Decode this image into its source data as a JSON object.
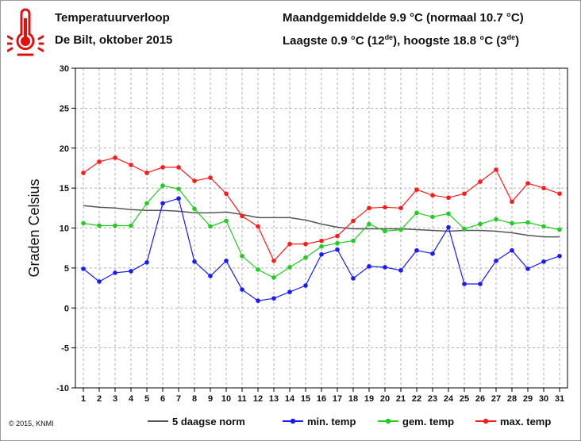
{
  "header": {
    "title": "Temperatuurverloop",
    "subtitle": "De Bilt, oktober 2015",
    "summary_line1": "Maandgemiddelde 9.9 °C (normaal 10.7 °C)",
    "summary_line2_pre": "Laagste 0.9 °C (12",
    "summary_line2_sup1": "de",
    "summary_line2_mid": "), hoogste 18.8 °C (3",
    "summary_line2_sup2": "de",
    "summary_line2_post": ")"
  },
  "icon": {
    "name": "thermometer-icon",
    "color": "#e01010"
  },
  "copyright": "© 2015, KNMI",
  "chart_data": {
    "type": "line",
    "ylabel": "Graden Celsius",
    "xlabel": "",
    "ylim": [
      -10,
      30
    ],
    "yticks": [
      -10,
      -5,
      0,
      5,
      10,
      15,
      20,
      25,
      30
    ],
    "grid": "dashed",
    "legend_position": "bottom",
    "x": [
      1,
      2,
      3,
      4,
      5,
      6,
      7,
      8,
      9,
      10,
      11,
      12,
      13,
      14,
      15,
      16,
      17,
      18,
      19,
      20,
      21,
      22,
      23,
      24,
      25,
      26,
      27,
      28,
      29,
      30,
      31
    ],
    "series": [
      {
        "name": "5 daagse norm",
        "color": "#555555",
        "markers": false,
        "values": [
          12.8,
          12.6,
          12.5,
          12.3,
          12.2,
          12.2,
          12.1,
          11.9,
          11.9,
          12.0,
          11.7,
          11.3,
          11.3,
          11.3,
          11.0,
          10.5,
          10.1,
          9.9,
          9.9,
          9.9,
          9.9,
          9.8,
          9.7,
          9.6,
          9.7,
          9.7,
          9.6,
          9.4,
          9.1,
          8.9,
          8.9
        ]
      },
      {
        "name": "min. temp",
        "color": "#1a1aff",
        "markers": true,
        "values": [
          4.9,
          3.3,
          4.4,
          4.6,
          5.7,
          13.1,
          13.7,
          5.8,
          4.0,
          5.9,
          2.3,
          0.9,
          1.2,
          2.0,
          2.8,
          6.7,
          7.3,
          3.7,
          5.2,
          5.1,
          4.7,
          7.2,
          6.8,
          10.1,
          3.0,
          3.0,
          5.9,
          7.2,
          4.9,
          5.8,
          6.5
        ]
      },
      {
        "name": "gem. temp",
        "color": "#22cc22",
        "markers": true,
        "values": [
          10.6,
          10.3,
          10.3,
          10.3,
          13.1,
          15.3,
          14.9,
          12.4,
          10.2,
          10.9,
          6.5,
          4.8,
          3.8,
          5.1,
          6.3,
          7.7,
          8.1,
          8.4,
          10.5,
          9.6,
          9.8,
          11.9,
          11.4,
          11.8,
          9.9,
          10.5,
          11.1,
          10.6,
          10.7,
          10.2,
          9.8
        ]
      },
      {
        "name": "max. temp",
        "color": "#ff1a1a",
        "markers": true,
        "values": [
          16.9,
          18.3,
          18.8,
          17.9,
          16.9,
          17.6,
          17.6,
          15.9,
          16.3,
          14.3,
          11.5,
          10.2,
          5.9,
          8.0,
          8.0,
          8.4,
          9.0,
          10.9,
          12.5,
          12.6,
          12.5,
          14.8,
          14.1,
          13.8,
          14.3,
          15.8,
          17.3,
          13.3,
          15.6,
          15.0,
          14.3
        ]
      }
    ]
  }
}
